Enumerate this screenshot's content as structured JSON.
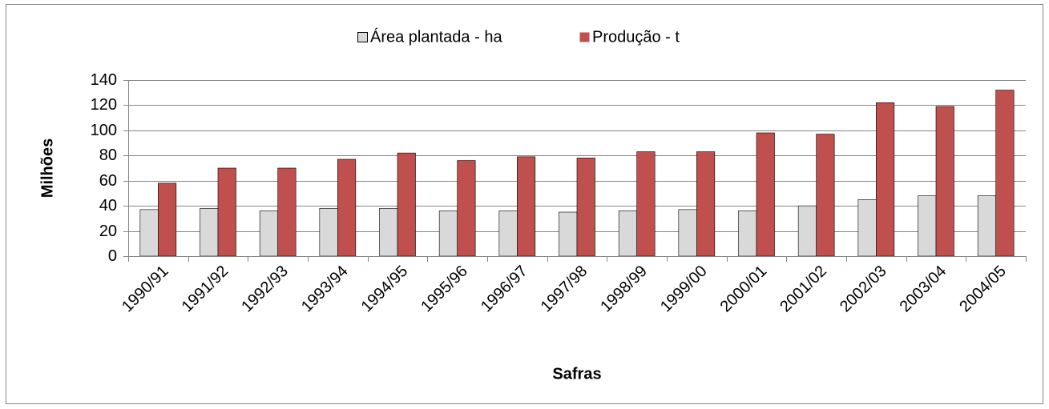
{
  "chart_data": {
    "type": "bar",
    "categories": [
      "1990/91",
      "1991/92",
      "1992/93",
      "1993/94",
      "1994/95",
      "1995/96",
      "1996/97",
      "1997/98",
      "1998/99",
      "1999/00",
      "2000/01",
      "2001/02",
      "2002/03",
      "2003/04",
      "2004/05"
    ],
    "series": [
      {
        "name": "Área plantada - ha",
        "color": "#d9d9d9",
        "values": [
          37,
          38,
          36,
          38,
          38,
          36,
          36,
          35,
          36,
          37,
          36,
          40,
          45,
          48,
          48
        ]
      },
      {
        "name": "Produção - t",
        "color": "#c0504d",
        "values": [
          58,
          70,
          70,
          77,
          82,
          76,
          79,
          78,
          83,
          83,
          98,
          97,
          122,
          119,
          132
        ]
      }
    ],
    "x_label": "Safras",
    "y_label": "Milhões",
    "ylim": [
      0,
      140
    ],
    "yticks": [
      0,
      20,
      40,
      60,
      80,
      100,
      120,
      140
    ],
    "grid": true,
    "legend": "top"
  }
}
